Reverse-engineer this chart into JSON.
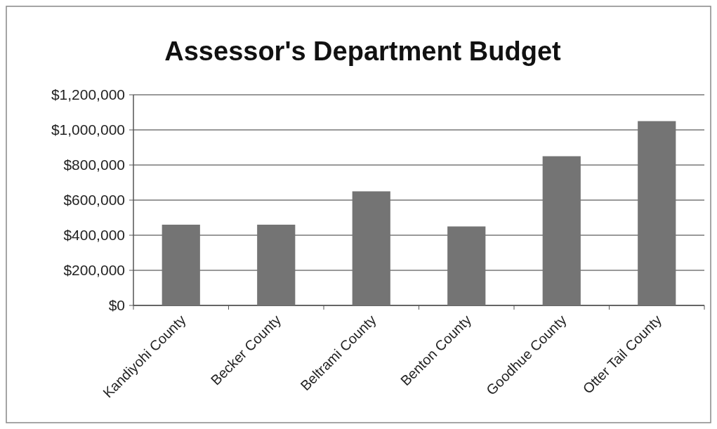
{
  "chart_data": {
    "type": "bar",
    "title": "Assessor's Department Budget",
    "categories": [
      "Kandiyohi County",
      "Becker County",
      "Beltrami County",
      "Benton County",
      "Goodhue County",
      "Otter Tail County"
    ],
    "values": [
      460000,
      460000,
      650000,
      450000,
      850000,
      1050000
    ],
    "color": "#747474",
    "ylim": [
      0,
      1200000
    ],
    "yticks": [
      {
        "value": 0,
        "label": "$0"
      },
      {
        "value": 200000,
        "label": "$200,000"
      },
      {
        "value": 400000,
        "label": "$400,000"
      },
      {
        "value": 600000,
        "label": "$600,000"
      },
      {
        "value": 800000,
        "label": "$800,000"
      },
      {
        "value": 1000000,
        "label": "$1,000,000"
      },
      {
        "value": 1200000,
        "label": "$1,200,000"
      }
    ],
    "grid": "y"
  }
}
